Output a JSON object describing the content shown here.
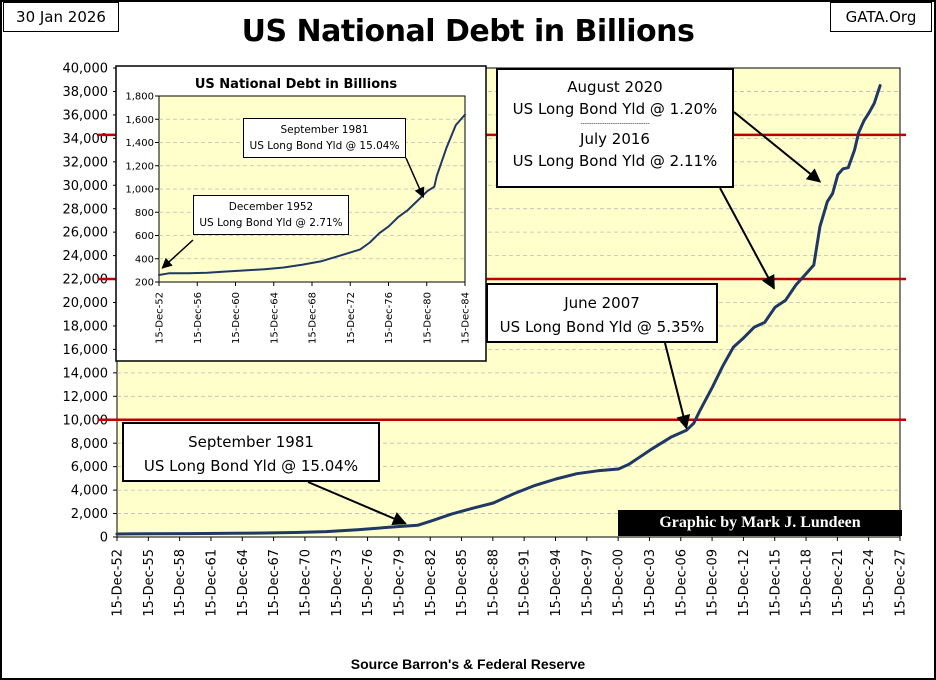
{
  "header": {
    "date": "30 Jan 2026",
    "site": "GATA.Org",
    "title": "US National Debt in Billions",
    "source": "Source Barron's & Federal Reserve",
    "credit": "Graphic by Mark J. Lundeen"
  },
  "colors": {
    "plot_bg": "#FFFFCC",
    "line": "#1F3864",
    "ref_line": "#C00000",
    "grid": "#BBBBBB"
  },
  "chart_data": [
    {
      "type": "line",
      "title": "US National Debt in Billions",
      "ylim": [
        0,
        40000
      ],
      "yticks": [
        0,
        2000,
        4000,
        6000,
        8000,
        10000,
        12000,
        14000,
        16000,
        18000,
        20000,
        22000,
        24000,
        26000,
        28000,
        30000,
        32000,
        34000,
        36000,
        38000,
        40000
      ],
      "ytick_labels": [
        "0",
        "2,000",
        "4,000",
        "6,000",
        "8,000",
        "10,000",
        "12,000",
        "14,000",
        "16,000",
        "18,000",
        "20,000",
        "22,000",
        "24,000",
        "26,000",
        "28,000",
        "30,000",
        "32,000",
        "34,000",
        "36,000",
        "38,000",
        "40,000"
      ],
      "xlim": [
        1952.96,
        2027.96
      ],
      "xticks": [
        "15-Dec-52",
        "15-Dec-55",
        "15-Dec-58",
        "15-Dec-61",
        "15-Dec-64",
        "15-Dec-67",
        "15-Dec-70",
        "15-Dec-73",
        "15-Dec-76",
        "15-Dec-79",
        "15-Dec-82",
        "15-Dec-85",
        "15-Dec-88",
        "15-Dec-91",
        "15-Dec-94",
        "15-Dec-97",
        "15-Dec-00",
        "15-Dec-03",
        "15-Dec-06",
        "15-Dec-09",
        "15-Dec-12",
        "15-Dec-15",
        "15-Dec-18",
        "15-Dec-21",
        "15-Dec-24",
        "15-Dec-27"
      ],
      "reference_lines": [
        10000,
        22000,
        34300
      ],
      "series": [
        {
          "name": "US National Debt",
          "x": [
            1952.96,
            1956,
            1960,
            1964,
            1967,
            1970,
            1973,
            1976,
            1979,
            1981.75,
            1983,
            1985,
            1987,
            1989,
            1991,
            1993,
            1995,
            1997,
            1999,
            2001,
            2002,
            2004,
            2006,
            2007.5,
            2008.2,
            2008.8,
            2010,
            2011,
            2012,
            2013,
            2014,
            2015,
            2016,
            2017,
            2018,
            2019,
            2019.7,
            2020.3,
            2020.6,
            2021,
            2021.5,
            2022,
            2022.5,
            2023,
            2023.6,
            2024,
            2024.5,
            2025,
            2025.5,
            2026.05
          ],
          "y": [
            260,
            275,
            290,
            315,
            345,
            380,
            460,
            620,
            830,
            1000,
            1350,
            1950,
            2450,
            2900,
            3700,
            4400,
            4950,
            5400,
            5650,
            5800,
            6200,
            7400,
            8500,
            9100,
            9700,
            10800,
            12800,
            14600,
            16200,
            17000,
            17900,
            18300,
            19600,
            20200,
            21500,
            22500,
            23200,
            26500,
            27400,
            28600,
            29300,
            30900,
            31400,
            31500,
            33000,
            34500,
            35500,
            36200,
            37000,
            38500
          ]
        }
      ]
    },
    {
      "type": "line",
      "title": "US National Debt in Billions",
      "ylim": [
        200,
        1800
      ],
      "yticks": [
        200,
        400,
        600,
        800,
        1000,
        1200,
        1400,
        1600,
        1800
      ],
      "ytick_labels": [
        "200",
        "400",
        "600",
        "800",
        "1,000",
        "1,200",
        "1,400",
        "1,600",
        "1,800"
      ],
      "xlim": [
        1952.96,
        1984.96
      ],
      "xticks": [
        "15-Dec-52",
        "15-Dec-56",
        "15-Dec-60",
        "15-Dec-64",
        "15-Dec-68",
        "15-Dec-72",
        "15-Dec-76",
        "15-Dec-80",
        "15-Dec-84"
      ],
      "series": [
        {
          "name": "US National Debt",
          "x": [
            1952.96,
            1954,
            1956,
            1958,
            1960,
            1962,
            1964,
            1966,
            1968,
            1970,
            1972,
            1974,
            1975,
            1976,
            1977,
            1978,
            1979,
            1980,
            1981,
            1981.75,
            1982,
            1983,
            1984,
            1984.96
          ],
          "y": [
            260,
            275,
            275,
            280,
            290,
            300,
            310,
            325,
            350,
            380,
            430,
            480,
            540,
            620,
            680,
            760,
            820,
            900,
            980,
            1020,
            1110,
            1350,
            1550,
            1640
          ]
        }
      ]
    }
  ],
  "annotations": {
    "main_1981": {
      "line1": "September 1981",
      "line2": "US Long Bond Yld @ 15.04%"
    },
    "main_2007": {
      "line1": "June 2007",
      "line2": "US Long Bond Yld @ 5.35%"
    },
    "main_2020": {
      "line1": "August 2020",
      "line2": "US Long Bond Yld @ 1.20%",
      "divider": "--------------------------------",
      "line3": "July 2016",
      "line4": "US Long Bond Yld @ 2.11%"
    },
    "inset_1952": {
      "line1": "December 1952",
      "line2": "US Long Bond Yld @ 2.71%"
    },
    "inset_1981": {
      "line1": "September 1981",
      "line2": "US Long Bond Yld @ 15.04%"
    }
  }
}
